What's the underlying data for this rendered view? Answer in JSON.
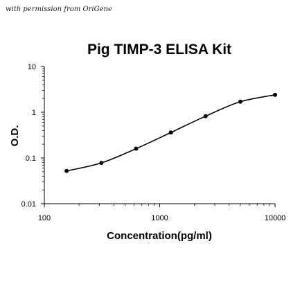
{
  "attribution": "with permission from OriGene",
  "chart_data": {
    "type": "line",
    "title": "Pig TIMP-3 ELISA Kit",
    "xlabel": "Concentration(pg/ml)",
    "ylabel": "O.D.",
    "xscale": "log",
    "yscale": "log",
    "xlim": [
      100,
      10000
    ],
    "ylim": [
      0.01,
      10
    ],
    "xticks": [
      "100",
      "1000",
      "10000"
    ],
    "yticks": [
      "10",
      "1",
      "0.1",
      "0.01"
    ],
    "grid": false,
    "legend": "none",
    "line_color": "#000000",
    "series": [
      {
        "x": [
          156,
          312,
          625,
          1250,
          2500,
          5000,
          10000
        ],
        "y": [
          0.052,
          0.078,
          0.16,
          0.36,
          0.82,
          1.7,
          2.4
        ]
      }
    ]
  }
}
